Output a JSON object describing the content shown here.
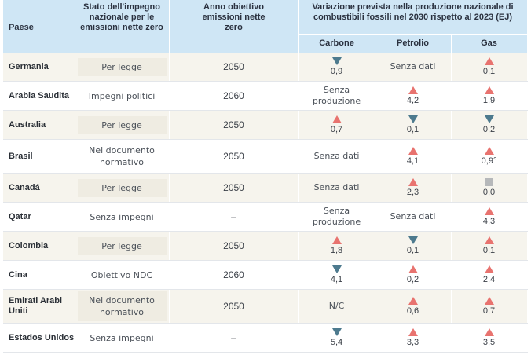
{
  "headers": {
    "paese": "Paese",
    "stato": "Stato dell'impegno nazionale per le emissioni nette zero",
    "anno": "Anno obiettivo emissioni nette zero",
    "variazione": "Variazione prevista nella produzione nazionale di combustibili fossili nel 2030 rispetto al 2023 (EJ)",
    "carbone": "Carbone",
    "petrolio": "Petrolio",
    "gas": "Gas"
  },
  "rows": [
    {
      "country": "Germania",
      "status": "Per legge",
      "year": "2050",
      "carbone": {
        "dir": "down",
        "value": "0,9"
      },
      "petrolio": {
        "dir": "none",
        "value": "Senza dati"
      },
      "gas": {
        "dir": "up",
        "value": "0,1"
      }
    },
    {
      "country": "Arabia Saudita",
      "status": "Impegni politici",
      "year": "2060",
      "carbone": {
        "dir": "none",
        "value": "Senza produzione"
      },
      "petrolio": {
        "dir": "up",
        "value": "4,2"
      },
      "gas": {
        "dir": "up",
        "value": "1,9"
      }
    },
    {
      "country": "Australia",
      "status": "Per legge",
      "year": "2050",
      "carbone": {
        "dir": "up",
        "value": "0,7"
      },
      "petrolio": {
        "dir": "down",
        "value": "0,1"
      },
      "gas": {
        "dir": "down",
        "value": "0,2"
      }
    },
    {
      "country": "Brasil",
      "status": "Nel documento normativo",
      "year": "2050",
      "carbone": {
        "dir": "none",
        "value": "Senza dati"
      },
      "petrolio": {
        "dir": "up",
        "value": "4,1"
      },
      "gas": {
        "dir": "up",
        "value": "0,9°"
      }
    },
    {
      "country": "Canadá",
      "status": "Per legge",
      "year": "2050",
      "carbone": {
        "dir": "none",
        "value": "Senza dati"
      },
      "petrolio": {
        "dir": "up",
        "value": "2,3"
      },
      "gas": {
        "dir": "flat",
        "value": "0,0"
      }
    },
    {
      "country": "Qatar",
      "status": "Senza impegni",
      "year": "–",
      "carbone": {
        "dir": "none",
        "value": "Senza produzione"
      },
      "petrolio": {
        "dir": "none",
        "value": "Senza dati"
      },
      "gas": {
        "dir": "up",
        "value": "4,3"
      }
    },
    {
      "country": "Colombia",
      "status": "Per legge",
      "year": "2050",
      "carbone": {
        "dir": "up",
        "value": "1,8"
      },
      "petrolio": {
        "dir": "down",
        "value": "0,1"
      },
      "gas": {
        "dir": "up",
        "value": "0,1"
      }
    },
    {
      "country": "Cina",
      "status": "Obiettivo NDC",
      "year": "2060",
      "carbone": {
        "dir": "down",
        "value": "4,1"
      },
      "petrolio": {
        "dir": "up",
        "value": "0,2"
      },
      "gas": {
        "dir": "up",
        "value": "2,4"
      }
    },
    {
      "country": "Emirati Arabi Uniti",
      "status": "Nel documento normativo",
      "year": "2050",
      "carbone": {
        "dir": "none",
        "value": "N/C"
      },
      "petrolio": {
        "dir": "up",
        "value": "0,6"
      },
      "gas": {
        "dir": "up",
        "value": "0,7"
      }
    },
    {
      "country": "Estados Unidos",
      "status": "Senza impegni",
      "year": "–",
      "carbone": {
        "dir": "down",
        "value": "5,4"
      },
      "petrolio": {
        "dir": "up",
        "value": "3,3"
      },
      "gas": {
        "dir": "up",
        "value": "3,5"
      }
    }
  ],
  "colors": {
    "up": "#e8736f",
    "down": "#4d7a8e",
    "flat": "#b6b8ba",
    "header_bg": "#cfe6f5"
  }
}
